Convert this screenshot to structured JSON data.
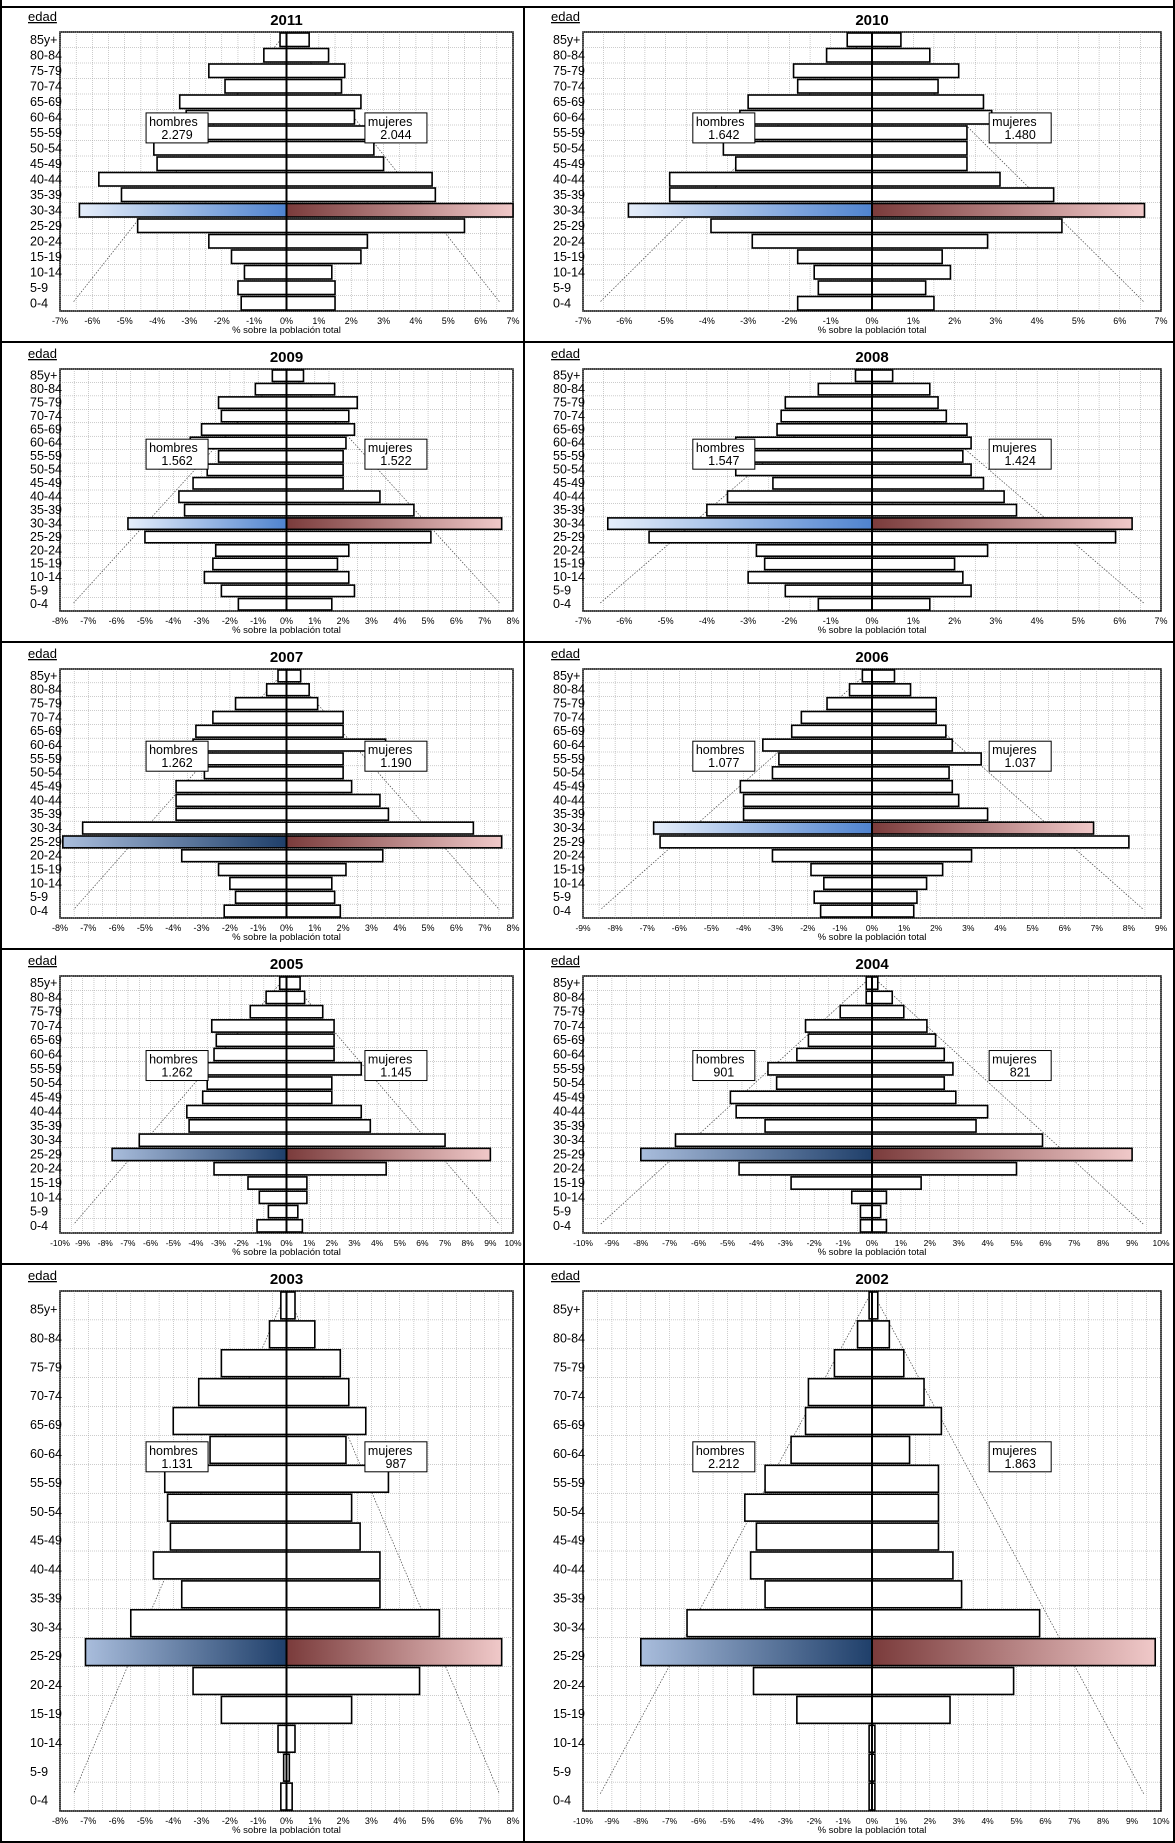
{
  "chart_data": [
    {
      "type": "bar",
      "title": "2011",
      "ylabel": "edad",
      "xlabel": "% sobre la población total",
      "xlim": [
        -7,
        7
      ],
      "ticks": [
        "-7%",
        "-6%",
        "-5%",
        "-4%",
        "-3%",
        "-2%",
        "-1%",
        "0%",
        "1%",
        "2%",
        "3%",
        "4%",
        "5%",
        "6%",
        "7%"
      ],
      "categories": [
        "0-4",
        "5-9",
        "10-14",
        "15-19",
        "20-24",
        "25-29",
        "30-34",
        "35-39",
        "40-44",
        "45-49",
        "50-54",
        "55-59",
        "60-64",
        "65-69",
        "70-74",
        "75-79",
        "80-84",
        "85y+"
      ],
      "series": [
        {
          "name": "hombres",
          "values": [
            -1.4,
            -1.5,
            -1.3,
            -1.7,
            -2.4,
            -4.6,
            -6.4,
            -5.1,
            -5.8,
            -4.0,
            -4.1,
            -3.6,
            -3.1,
            -3.3,
            -1.9,
            -2.4,
            -0.7,
            -0.2
          ]
        },
        {
          "name": "mujeres",
          "values": [
            1.5,
            1.5,
            1.4,
            2.3,
            2.5,
            5.5,
            7.0,
            4.6,
            4.5,
            3.0,
            2.7,
            2.6,
            2.1,
            2.3,
            1.7,
            1.8,
            1.3,
            0.7
          ]
        }
      ],
      "annotations": {
        "hombres_label": "hombres",
        "hombres_value": "2.279",
        "mujeres_label": "mujeres",
        "mujeres_value": "2.044"
      },
      "highlight": 6,
      "colors": {
        "male": "#3f6fb6",
        "female": "#b86a6a"
      }
    },
    {
      "type": "bar",
      "title": "2010",
      "ylabel": "edad",
      "xlabel": "% sobre la población total",
      "xlim": [
        -7,
        7
      ],
      "ticks": [
        "-7%",
        "-6%",
        "-5%",
        "-4%",
        "-3%",
        "-2%",
        "-1%",
        "0%",
        "1%",
        "2%",
        "3%",
        "4%",
        "5%",
        "6%",
        "7%"
      ],
      "categories": [
        "0-4",
        "5-9",
        "10-14",
        "15-19",
        "20-24",
        "25-29",
        "30-34",
        "35-39",
        "40-44",
        "45-49",
        "50-54",
        "55-59",
        "60-64",
        "65-69",
        "70-74",
        "75-79",
        "80-84",
        "85y+"
      ],
      "series": [
        {
          "name": "hombres",
          "values": [
            -1.8,
            -1.3,
            -1.4,
            -1.8,
            -2.9,
            -3.9,
            -5.9,
            -4.9,
            -4.9,
            -3.3,
            -3.6,
            -3.2,
            -3.2,
            -3.0,
            -1.8,
            -1.9,
            -1.1,
            -0.6
          ]
        },
        {
          "name": "mujeres",
          "values": [
            1.5,
            1.3,
            1.9,
            1.7,
            2.8,
            4.6,
            6.6,
            4.4,
            3.1,
            2.3,
            2.3,
            2.3,
            2.9,
            2.7,
            1.6,
            2.1,
            1.4,
            0.7
          ]
        }
      ],
      "annotations": {
        "hombres_label": "hombres",
        "hombres_value": "1.642",
        "mujeres_label": "mujeres",
        "mujeres_value": "1.480"
      },
      "highlight": 6,
      "colors": {
        "male": "#3f6fb6",
        "female": "#b86a6a"
      }
    },
    {
      "type": "bar",
      "title": "2009",
      "ylabel": "edad",
      "xlabel": "% sobre la población total",
      "xlim": [
        -8,
        8
      ],
      "ticks": [
        "-8%",
        "-7%",
        "-6%",
        "-5%",
        "-4%",
        "-3%",
        "-2%",
        "-1%",
        "0%",
        "1%",
        "2%",
        "3%",
        "4%",
        "5%",
        "6%",
        "7%",
        "8%"
      ],
      "categories": [
        "0-4",
        "5-9",
        "10-14",
        "15-19",
        "20-24",
        "25-29",
        "30-34",
        "35-39",
        "40-44",
        "45-49",
        "50-54",
        "55-59",
        "60-64",
        "65-69",
        "70-74",
        "75-79",
        "80-84",
        "85y+"
      ],
      "series": [
        {
          "name": "hombres",
          "values": [
            -1.7,
            -2.3,
            -2.9,
            -2.6,
            -2.5,
            -5.0,
            -5.6,
            -3.6,
            -3.8,
            -3.3,
            -2.8,
            -2.4,
            -3.4,
            -3.0,
            -2.3,
            -2.4,
            -1.1,
            -0.5
          ]
        },
        {
          "name": "mujeres",
          "values": [
            1.6,
            2.4,
            2.2,
            1.8,
            2.2,
            5.1,
            7.6,
            4.5,
            3.3,
            2.0,
            2.0,
            2.0,
            2.1,
            2.4,
            2.2,
            2.5,
            1.7,
            0.6
          ]
        }
      ],
      "annotations": {
        "hombres_label": "hombres",
        "hombres_value": "1.562",
        "mujeres_label": "mujeres",
        "mujeres_value": "1.522"
      },
      "highlight": 6,
      "colors": {
        "male": "#3f6fb6",
        "female": "#b86a6a"
      }
    },
    {
      "type": "bar",
      "title": "2008",
      "ylabel": "edad",
      "xlabel": "% sobre la población total",
      "xlim": [
        -7,
        7
      ],
      "ticks": [
        "-7%",
        "-6%",
        "-5%",
        "-4%",
        "-3%",
        "-2%",
        "-1%",
        "0%",
        "1%",
        "2%",
        "3%",
        "4%",
        "5%",
        "6%",
        "7%"
      ],
      "categories": [
        "0-4",
        "5-9",
        "10-14",
        "15-19",
        "20-24",
        "25-29",
        "30-34",
        "35-39",
        "40-44",
        "45-49",
        "50-54",
        "55-59",
        "60-64",
        "65-69",
        "70-74",
        "75-79",
        "80-84",
        "85y+"
      ],
      "series": [
        {
          "name": "hombres",
          "values": [
            -1.3,
            -2.1,
            -3.0,
            -2.6,
            -2.8,
            -5.4,
            -6.4,
            -4.0,
            -3.5,
            -2.4,
            -3.3,
            -3.3,
            -3.3,
            -2.3,
            -2.2,
            -2.1,
            -1.3,
            -0.4
          ]
        },
        {
          "name": "mujeres",
          "values": [
            1.4,
            2.4,
            2.2,
            2.0,
            2.8,
            5.9,
            6.3,
            3.5,
            3.2,
            2.7,
            2.4,
            2.2,
            2.4,
            2.3,
            1.8,
            1.6,
            1.4,
            0.5
          ]
        }
      ],
      "annotations": {
        "hombres_label": "hombres",
        "hombres_value": "1.547",
        "mujeres_label": "mujeres",
        "mujeres_value": "1.424"
      },
      "highlight": 6,
      "colors": {
        "male": "#3f6fb6",
        "female": "#b86a6a"
      }
    },
    {
      "type": "bar",
      "title": "2007",
      "ylabel": "edad",
      "xlabel": "% sobre la población total",
      "xlim": [
        -8,
        8
      ],
      "ticks": [
        "-8%",
        "-7%",
        "-6%",
        "-5%",
        "-4%",
        "-3%",
        "-2%",
        "-1%",
        "0%",
        "1%",
        "2%",
        "3%",
        "4%",
        "5%",
        "6%",
        "7%",
        "8%"
      ],
      "categories": [
        "0-4",
        "5-9",
        "10-14",
        "15-19",
        "20-24",
        "25-29",
        "30-34",
        "35-39",
        "40-44",
        "45-49",
        "50-54",
        "55-59",
        "60-64",
        "65-69",
        "70-74",
        "75-79",
        "80-84",
        "85y+"
      ],
      "series": [
        {
          "name": "hombres",
          "values": [
            -2.2,
            -1.8,
            -2.0,
            -2.4,
            -3.7,
            -7.9,
            -7.2,
            -3.9,
            -3.9,
            -3.9,
            -2.9,
            -2.9,
            -3.3,
            -3.2,
            -2.6,
            -1.8,
            -0.7,
            -0.3
          ]
        },
        {
          "name": "mujeres",
          "values": [
            1.9,
            1.7,
            1.6,
            2.1,
            3.4,
            7.6,
            6.6,
            3.6,
            3.3,
            2.3,
            2.0,
            2.0,
            3.5,
            2.0,
            2.0,
            1.1,
            0.8,
            0.5
          ]
        }
      ],
      "annotations": {
        "hombres_label": "hombres",
        "hombres_value": "1.262",
        "mujeres_label": "mujeres",
        "mujeres_value": "1.190"
      },
      "highlight": 5,
      "colors": {
        "male": "#3f6fb6",
        "female": "#b86a6a"
      }
    },
    {
      "type": "bar",
      "title": "2006",
      "ylabel": "edad",
      "xlabel": "% sobre la población total",
      "xlim": [
        -9,
        9
      ],
      "ticks": [
        "-9%",
        "-8%",
        "-7%",
        "-6%",
        "-5%",
        "-4%",
        "-3%",
        "-2%",
        "-1%",
        "0%",
        "1%",
        "2%",
        "3%",
        "4%",
        "5%",
        "6%",
        "7%",
        "8%",
        "9%"
      ],
      "categories": [
        "0-4",
        "5-9",
        "10-14",
        "15-19",
        "20-24",
        "25-29",
        "30-34",
        "35-39",
        "40-44",
        "45-49",
        "50-54",
        "55-59",
        "60-64",
        "65-69",
        "70-74",
        "75-79",
        "80-84",
        "85y+"
      ],
      "series": [
        {
          "name": "hombres",
          "values": [
            -1.6,
            -1.8,
            -1.5,
            -1.9,
            -3.1,
            -6.6,
            -6.8,
            -4.0,
            -4.0,
            -4.1,
            -3.1,
            -2.9,
            -3.4,
            -2.5,
            -2.2,
            -1.4,
            -0.7,
            -0.3
          ]
        },
        {
          "name": "mujeres",
          "values": [
            1.3,
            1.4,
            1.7,
            2.2,
            3.1,
            8.0,
            6.9,
            3.6,
            2.7,
            2.5,
            2.4,
            3.4,
            2.5,
            2.3,
            2.0,
            2.0,
            1.2,
            0.7
          ]
        }
      ],
      "annotations": {
        "hombres_label": "hombres",
        "hombres_value": "1.077",
        "mujeres_label": "mujeres",
        "mujeres_value": "1.037"
      },
      "highlight": 6,
      "colors": {
        "male": "#3f6fb6",
        "female": "#b86a6a"
      }
    },
    {
      "type": "bar",
      "title": "2005",
      "ylabel": "edad",
      "xlabel": "% sobre la población total",
      "xlim": [
        -10,
        10
      ],
      "ticks": [
        "-10%",
        "-9%",
        "-8%",
        "-7%",
        "-6%",
        "-5%",
        "-4%",
        "-3%",
        "-2%",
        "-1%",
        "0%",
        "1%",
        "2%",
        "3%",
        "4%",
        "5%",
        "6%",
        "7%",
        "8%",
        "9%",
        "10%"
      ],
      "categories": [
        "0-4",
        "5-9",
        "10-14",
        "15-19",
        "20-24",
        "25-29",
        "30-34",
        "35-39",
        "40-44",
        "45-49",
        "50-54",
        "55-59",
        "60-64",
        "65-69",
        "70-74",
        "75-79",
        "80-84",
        "85y+"
      ],
      "series": [
        {
          "name": "hombres",
          "values": [
            -1.3,
            -0.8,
            -1.2,
            -1.7,
            -3.2,
            -7.7,
            -6.5,
            -4.3,
            -4.4,
            -3.7,
            -3.5,
            -3.5,
            -3.2,
            -3.1,
            -3.3,
            -1.6,
            -0.9,
            -0.3
          ]
        },
        {
          "name": "mujeres",
          "values": [
            0.7,
            0.5,
            0.9,
            0.9,
            4.4,
            9.0,
            7.0,
            3.7,
            3.3,
            2.0,
            2.0,
            3.3,
            2.1,
            2.1,
            2.1,
            1.6,
            0.8,
            0.6
          ]
        }
      ],
      "annotations": {
        "hombres_label": "hombres",
        "hombres_value": "1.262",
        "mujeres_label": "mujeres",
        "mujeres_value": "1.145"
      },
      "highlight": 5,
      "colors": {
        "male": "#3f6fb6",
        "female": "#b86a6a"
      }
    },
    {
      "type": "bar",
      "title": "2004",
      "ylabel": "edad",
      "xlabel": "% sobre la población total",
      "xlim": [
        -10,
        10
      ],
      "ticks": [
        "-10%",
        "-9%",
        "-8%",
        "-7%",
        "-6%",
        "-5%",
        "-4%",
        "-3%",
        "-2%",
        "-1%",
        "0%",
        "1%",
        "2%",
        "3%",
        "4%",
        "5%",
        "6%",
        "7%",
        "8%",
        "9%",
        "10%"
      ],
      "categories": [
        "0-4",
        "5-9",
        "10-14",
        "15-19",
        "20-24",
        "25-29",
        "30-34",
        "35-39",
        "40-44",
        "45-49",
        "50-54",
        "55-59",
        "60-64",
        "65-69",
        "70-74",
        "75-79",
        "80-84",
        "85y+"
      ],
      "series": [
        {
          "name": "hombres",
          "values": [
            -0.4,
            -0.4,
            -0.7,
            -2.8,
            -4.6,
            -8.0,
            -6.8,
            -3.7,
            -4.7,
            -4.9,
            -3.3,
            -3.6,
            -2.6,
            -2.2,
            -2.3,
            -1.1,
            -0.2,
            -0.2
          ]
        },
        {
          "name": "mujeres",
          "values": [
            0.5,
            0.3,
            0.5,
            1.7,
            5.0,
            9.0,
            5.9,
            3.6,
            4.0,
            2.9,
            2.5,
            2.8,
            2.5,
            2.2,
            1.9,
            1.1,
            0.7,
            0.2
          ]
        }
      ],
      "annotations": {
        "hombres_label": "hombres",
        "hombres_value": "901",
        "mujeres_label": "mujeres",
        "mujeres_value": "821"
      },
      "highlight": 5,
      "colors": {
        "male": "#3f6fb6",
        "female": "#b86a6a"
      }
    },
    {
      "type": "bar",
      "title": "2003",
      "ylabel": "edad",
      "xlabel": "% sobre la población total",
      "xlim": [
        -8,
        8
      ],
      "ticks": [
        "-8%",
        "-7%",
        "-6%",
        "-5%",
        "-4%",
        "-3%",
        "-2%",
        "-1%",
        "0%",
        "1%",
        "2%",
        "3%",
        "4%",
        "5%",
        "6%",
        "7%",
        "8%"
      ],
      "categories": [
        "0-4",
        "5-9",
        "10-14",
        "15-19",
        "20-24",
        "25-29",
        "30-34",
        "35-39",
        "40-44",
        "45-49",
        "50-54",
        "55-59",
        "60-64",
        "65-69",
        "70-74",
        "75-79",
        "80-84",
        "85y+"
      ],
      "series": [
        {
          "name": "hombres",
          "values": [
            -0.2,
            -0.1,
            -0.3,
            -2.3,
            -3.3,
            -7.1,
            -5.5,
            -3.7,
            -4.7,
            -4.1,
            -4.2,
            -4.3,
            -2.7,
            -4.0,
            -3.1,
            -2.3,
            -0.6,
            -0.2
          ]
        },
        {
          "name": "mujeres",
          "values": [
            0.2,
            0.1,
            0.3,
            2.3,
            4.7,
            7.6,
            5.4,
            3.3,
            3.3,
            2.6,
            2.3,
            3.6,
            2.1,
            2.8,
            2.2,
            1.9,
            1.0,
            0.3
          ]
        }
      ],
      "annotations": {
        "hombres_label": "hombres",
        "hombres_value": "1.131",
        "mujeres_label": "mujeres",
        "mujeres_value": "987"
      },
      "highlight": 5,
      "colors": {
        "male": "#3f6fb6",
        "female": "#b86a6a"
      }
    },
    {
      "type": "bar",
      "title": "2002",
      "ylabel": "edad",
      "xlabel": "% sobre la población total",
      "xlim": [
        -10,
        10
      ],
      "ticks": [
        "-10%",
        "-9%",
        "-8%",
        "-7%",
        "-6%",
        "-5%",
        "-4%",
        "-3%",
        "-2%",
        "-1%",
        "0%",
        "1%",
        "2%",
        "3%",
        "4%",
        "5%",
        "6%",
        "7%",
        "8%",
        "9%",
        "10%"
      ],
      "categories": [
        "0-4",
        "5-9",
        "10-14",
        "15-19",
        "20-24",
        "25-29",
        "30-34",
        "35-39",
        "40-44",
        "45-49",
        "50-54",
        "55-59",
        "60-64",
        "65-69",
        "70-74",
        "75-79",
        "80-84",
        "85y+"
      ],
      "series": [
        {
          "name": "hombres",
          "values": [
            -0.1,
            -0.1,
            -0.1,
            -2.6,
            -4.1,
            -8.0,
            -6.4,
            -3.7,
            -4.2,
            -4.0,
            -4.4,
            -3.7,
            -2.8,
            -2.3,
            -2.2,
            -1.3,
            -0.5,
            -0.1
          ]
        },
        {
          "name": "mujeres",
          "values": [
            0.1,
            0.1,
            0.1,
            2.7,
            4.9,
            9.8,
            5.8,
            3.1,
            2.8,
            2.3,
            2.3,
            2.3,
            1.3,
            2.4,
            1.8,
            1.1,
            0.6,
            0.2
          ]
        }
      ],
      "annotations": {
        "hombres_label": "hombres",
        "hombres_value": "2.212",
        "mujeres_label": "mujeres",
        "mujeres_value": "1.863"
      },
      "highlight": 5,
      "colors": {
        "male": "#3f6fb6",
        "female": "#b86a6a"
      }
    }
  ]
}
